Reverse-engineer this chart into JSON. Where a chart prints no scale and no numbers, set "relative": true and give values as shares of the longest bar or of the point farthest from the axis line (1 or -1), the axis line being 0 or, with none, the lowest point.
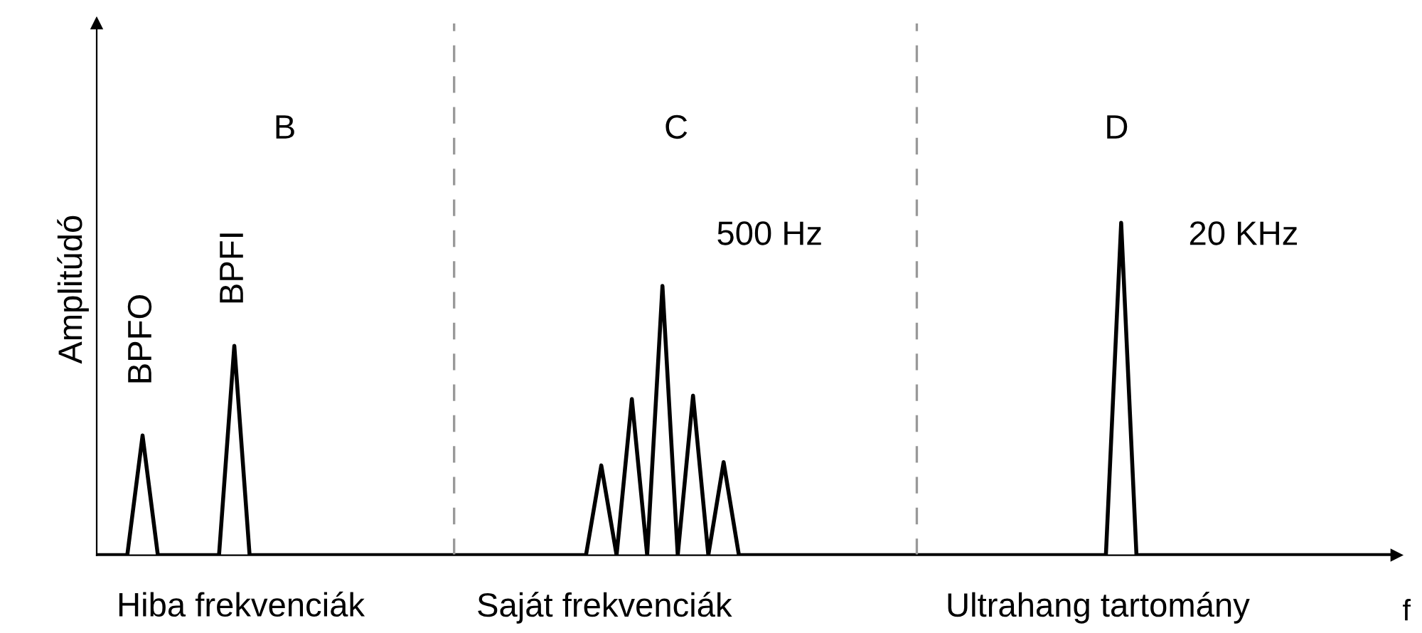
{
  "chart_data": {
    "type": "line",
    "relative": true,
    "ylabel": "Amplitúdó",
    "xlabel": "f",
    "categories": [
      null,
      null,
      null,
      null,
      null,
      null,
      null,
      null,
      null,
      null,
      null,
      null,
      null,
      null,
      null,
      null,
      null,
      null,
      null,
      null,
      null,
      null,
      null,
      null,
      null,
      null,
      null,
      null,
      null,
      null,
      null,
      null,
      null,
      null,
      null,
      null,
      null,
      null,
      null,
      null,
      null,
      null,
      null,
      null,
      null,
      null,
      null,
      null,
      null,
      null,
      null,
      null,
      null,
      null,
      null,
      null,
      null,
      null,
      null,
      null,
      null,
      null,
      null,
      null,
      null,
      null,
      null,
      null,
      null,
      null,
      null,
      null,
      null,
      null,
      null,
      null,
      null,
      null,
      null,
      null,
      null,
      null,
      null,
      null,
      null,
      null
    ],
    "values": [
      0,
      0,
      0,
      0.36,
      0,
      0,
      0,
      0,
      0,
      0.63,
      0,
      0,
      0,
      0,
      0,
      0,
      0,
      0,
      0,
      0,
      0,
      0,
      0,
      0,
      0,
      0,
      0,
      0,
      0,
      0,
      0,
      0,
      0,
      0.27,
      0,
      0.47,
      0,
      0.81,
      0,
      0.48,
      0,
      0.28,
      0,
      0,
      0,
      0,
      0,
      0,
      0,
      0,
      0,
      0,
      0,
      0,
      0,
      0,
      0,
      0,
      0,
      0,
      0,
      0,
      0,
      0,
      0,
      0,
      0,
      1.0,
      0,
      0,
      0,
      0,
      0,
      0,
      0,
      0,
      0,
      0,
      0,
      0,
      0,
      0,
      0,
      0,
      0,
      0
    ],
    "color": "#000000",
    "annotations": [
      "BPFO",
      "BPFI",
      "B",
      "C",
      "500 Hz",
      "D",
      "20 KHz",
      "Hiba frekvenciák",
      "Saját frekvenciák",
      "Ultrahang tartomány"
    ]
  }
}
